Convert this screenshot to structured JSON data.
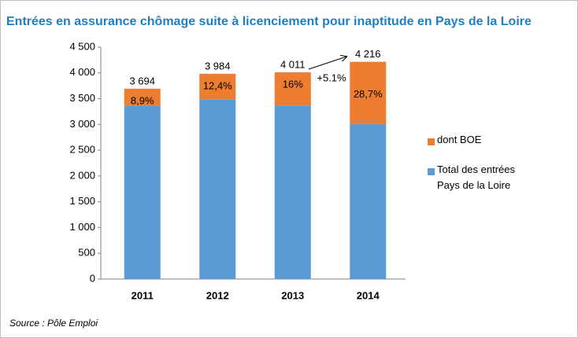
{
  "chart_data": {
    "type": "stacked_bar",
    "title": "Entrées en assurance chômage suite à licenciement pour inaptitude en Pays de la Loire",
    "categories": [
      "2011",
      "2012",
      "2013",
      "2014"
    ],
    "series": [
      {
        "name": "Total des entrées Pays de la Loire",
        "color": "#5b9bd5",
        "values": [
          3365,
          3490,
          3369,
          3006
        ]
      },
      {
        "name": "dont BOE",
        "color": "#ed7d31",
        "values": [
          329,
          494,
          642,
          1210
        ]
      }
    ],
    "totals": [
      3694,
      3984,
      4011,
      4216
    ],
    "total_labels": [
      "3 694",
      "3 984",
      "4 011",
      "4 216"
    ],
    "shares": [
      8.9,
      12.4,
      16,
      28.7
    ],
    "share_labels": [
      "8,9%",
      "12,4%",
      "16%",
      "28,7%"
    ],
    "annotation": "+5.1%",
    "source": "Source : Pôle Emploi",
    "ylim": [
      0,
      4500
    ],
    "yticks": [
      0,
      500,
      {
        "value": 1000,
        "label": "1 000"
      },
      {
        "value": 1500,
        "label": "1 500"
      },
      {
        "value": 2000,
        "label": "2 000"
      },
      {
        "value": 2500,
        "label": "2 500"
      },
      {
        "value": 3000,
        "label": "3 000"
      },
      {
        "value": 3500,
        "label": "3 500"
      },
      {
        "value": 4000,
        "label": "4 000"
      },
      {
        "value": 4500,
        "label": "4 500"
      }
    ],
    "legend": "right"
  }
}
